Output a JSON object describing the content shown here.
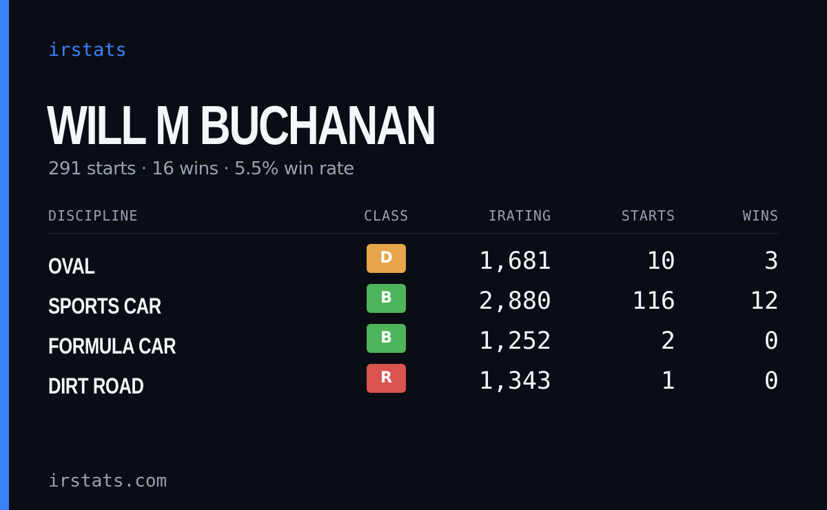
{
  "brand": "irstats",
  "driver": {
    "name": "WILL M BUCHANAN",
    "summary": "291 starts · 16 wins · 5.5% win rate"
  },
  "table": {
    "headers": {
      "discipline": "DISCIPLINE",
      "class": "CLASS",
      "irating": "IRATING",
      "starts": "STARTS",
      "wins": "WINS"
    },
    "rows": [
      {
        "discipline": "OVAL",
        "class": "D",
        "class_color": "#e8a64a",
        "irating": "1,681",
        "starts": "10",
        "wins": "3"
      },
      {
        "discipline": "SPORTS CAR",
        "class": "B",
        "class_color": "#4fb55b",
        "irating": "2,880",
        "starts": "116",
        "wins": "12"
      },
      {
        "discipline": "FORMULA CAR",
        "class": "B",
        "class_color": "#4fb55b",
        "irating": "1,252",
        "starts": "2",
        "wins": "0"
      },
      {
        "discipline": "DIRT ROAD",
        "class": "R",
        "class_color": "#d9534f",
        "irating": "1,343",
        "starts": "1",
        "wins": "0"
      }
    ]
  },
  "footer": "irstats.com",
  "colors": {
    "accent": "#3b82f6",
    "background": "#0a0d14",
    "text_primary": "#f4f6fa",
    "text_muted": "#98a1b1"
  }
}
